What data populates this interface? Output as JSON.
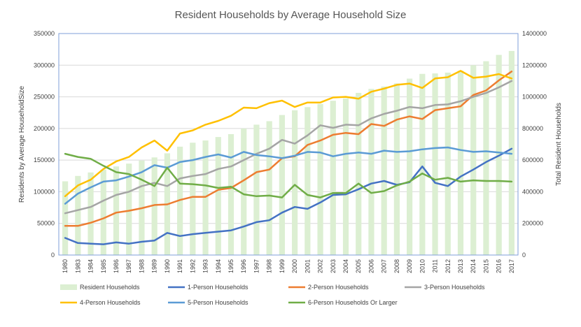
{
  "chart_data": {
    "type": "line",
    "title": "Resident Households by Average Household Size",
    "ylabel": "Residents by Average HouseholdSize",
    "y2label": "Total Resident Households",
    "ylim": [
      0,
      350000
    ],
    "y2lim": [
      0,
      1400000
    ],
    "yticks": [
      "0",
      "50000",
      "100000",
      "150000",
      "200000",
      "250000",
      "300000",
      "350000"
    ],
    "y2ticks": [
      "0",
      "200000",
      "400000",
      "600000",
      "800000",
      "1000000",
      "1200000",
      "1400000"
    ],
    "categories": [
      "1980",
      "1983",
      "1984",
      "1985",
      "1986",
      "1987",
      "1988",
      "1989",
      "1990",
      "1991",
      "1992",
      "1993",
      "1994",
      "1995",
      "1996",
      "1997",
      "1998",
      "1999",
      "2000",
      "2001",
      "2002",
      "2003",
      "2004",
      "2005",
      "2006",
      "2007",
      "2008",
      "2009",
      "2010",
      "2011",
      "2012",
      "2013",
      "2014",
      "2015",
      "2016",
      "2017"
    ],
    "grid": "horizontal",
    "legend_position": "bottom",
    "bar_series": {
      "name": "Resident Households",
      "axis": "secondary",
      "color": "#dcefd2",
      "values": [
        466000,
        500000,
        522000,
        540000,
        560000,
        578000,
        597000,
        617000,
        643000,
        685000,
        710000,
        724000,
        746000,
        764000,
        800000,
        824000,
        846000,
        885000,
        915000,
        935000,
        955000,
        975000,
        990000,
        1025000,
        1050000,
        1065000,
        1085000,
        1115000,
        1145000,
        1148000,
        1153000,
        1165000,
        1200000,
        1225000,
        1265000,
        1290000
      ]
    },
    "series": [
      {
        "name": "1-Person Households",
        "color": "#4472c4",
        "values": [
          27000,
          19000,
          18000,
          17000,
          20000,
          18000,
          21000,
          23000,
          35000,
          30000,
          33000,
          35000,
          37000,
          39000,
          45000,
          52000,
          55000,
          67000,
          76000,
          73000,
          83000,
          95000,
          96000,
          104000,
          113000,
          117000,
          111000,
          115000,
          140000,
          114000,
          109000,
          124000,
          135000,
          147000,
          157000,
          168000
        ]
      },
      {
        "name": "2-Person Households",
        "color": "#ed7d31",
        "values": [
          46000,
          46000,
          51000,
          58000,
          67000,
          70000,
          74000,
          79000,
          80000,
          87000,
          92000,
          92000,
          103000,
          106000,
          118000,
          131000,
          135000,
          153000,
          156000,
          174000,
          181000,
          190000,
          193000,
          191000,
          207000,
          204000,
          214000,
          219000,
          215000,
          229000,
          232000,
          235000,
          253000,
          260000,
          276000,
          290000
        ]
      },
      {
        "name": "3-Person Households",
        "color": "#a5a5a5",
        "values": [
          66000,
          71000,
          76000,
          86000,
          95000,
          100000,
          109000,
          114000,
          109000,
          121000,
          125000,
          128000,
          136000,
          140000,
          150000,
          160000,
          168000,
          182000,
          176000,
          189000,
          205000,
          201000,
          206000,
          205000,
          216000,
          223000,
          228000,
          234000,
          232000,
          237000,
          238000,
          243000,
          250000,
          256000,
          265000,
          275000
        ]
      },
      {
        "name": "4-Person Households",
        "color": "#ffc000",
        "values": [
          93000,
          110000,
          119000,
          136000,
          148000,
          155000,
          170000,
          181000,
          165000,
          192000,
          197000,
          206000,
          212000,
          220000,
          233000,
          232000,
          240000,
          244000,
          234000,
          241000,
          241000,
          249000,
          250000,
          247000,
          258000,
          263000,
          269000,
          271000,
          264000,
          279000,
          281000,
          291000,
          280000,
          282000,
          286000,
          279000
        ]
      },
      {
        "name": "5-Person Households",
        "color": "#5b9bd5",
        "values": [
          81000,
          97000,
          107000,
          116000,
          118000,
          124000,
          131000,
          142000,
          138000,
          147000,
          150000,
          155000,
          159000,
          154000,
          163000,
          158000,
          156000,
          153000,
          157000,
          163000,
          162000,
          156000,
          160000,
          162000,
          160000,
          165000,
          163000,
          164000,
          167000,
          169000,
          170000,
          166000,
          163000,
          164000,
          162000,
          160000
        ]
      },
      {
        "name": "6-Person Households Or Larger",
        "color": "#70ad47",
        "values": [
          160000,
          155000,
          152000,
          141000,
          131000,
          128000,
          119000,
          109000,
          138000,
          113000,
          112000,
          110000,
          106000,
          108000,
          96000,
          93000,
          94000,
          91000,
          111000,
          95000,
          91000,
          98000,
          98000,
          113000,
          98000,
          101000,
          110000,
          116000,
          129000,
          119000,
          122000,
          116000,
          118000,
          117000,
          117000,
          116000
        ]
      }
    ]
  }
}
